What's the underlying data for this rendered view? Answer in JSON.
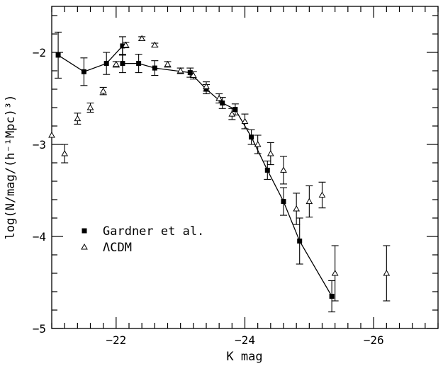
{
  "chart_data": {
    "type": "scatter",
    "title": "",
    "xlabel": "K mag",
    "ylabel": "log(N/mag/(h⁻¹Mpc)³)",
    "xlim": [
      -21,
      -27
    ],
    "ylim": [
      -5,
      -1.5
    ],
    "x_ticks": [
      -22,
      -24,
      -26
    ],
    "x_tick_labels": [
      "−22",
      "−24",
      "−26"
    ],
    "y_ticks": [
      -5,
      -4,
      -3,
      -2
    ],
    "y_tick_labels": [
      "−5",
      "−4",
      "−3",
      "−2"
    ],
    "x_minor_step": 0.2,
    "y_minor_step": 0.2,
    "grid": false,
    "legend_position": "lower-left",
    "series": [
      {
        "name": "Gardner et al.",
        "marker": "filled-square",
        "connected": true,
        "points": [
          {
            "x": -21.1,
            "y": -2.03,
            "err": 0.25
          },
          {
            "x": -21.5,
            "y": -2.21,
            "err": 0.15
          },
          {
            "x": -21.85,
            "y": -2.12,
            "err": 0.12
          },
          {
            "x": -22.1,
            "y": -1.93,
            "err": 0.1
          },
          {
            "x": -22.1,
            "y": -2.12,
            "err": 0.1
          },
          {
            "x": -22.35,
            "y": -2.12,
            "err": 0.1
          },
          {
            "x": -22.6,
            "y": -2.17,
            "err": 0.08
          },
          {
            "x": -23.15,
            "y": -2.22,
            "err": 0.05
          },
          {
            "x": -23.4,
            "y": -2.4,
            "err": 0.05
          },
          {
            "x": -23.65,
            "y": -2.55,
            "err": 0.06
          },
          {
            "x": -23.85,
            "y": -2.62,
            "err": 0.06
          },
          {
            "x": -24.1,
            "y": -2.92,
            "err": 0.08
          },
          {
            "x": -24.35,
            "y": -3.28,
            "err": 0.1
          },
          {
            "x": -24.6,
            "y": -3.62,
            "err": 0.15
          },
          {
            "x": -24.85,
            "y": -4.05,
            "err": 0.25
          },
          {
            "x": -25.35,
            "y": -4.65,
            "err": 0.17
          }
        ]
      },
      {
        "name": "ΛCDM",
        "marker": "open-triangle",
        "connected": false,
        "points": [
          {
            "x": -21.0,
            "y": -2.9,
            "err": 0
          },
          {
            "x": -21.2,
            "y": -3.1,
            "err": 0.1
          },
          {
            "x": -21.4,
            "y": -2.72,
            "err": 0.06
          },
          {
            "x": -21.6,
            "y": -2.6,
            "err": 0.05
          },
          {
            "x": -21.8,
            "y": -2.42,
            "err": 0.04
          },
          {
            "x": -22.0,
            "y": -2.13,
            "err": 0.03
          },
          {
            "x": -22.15,
            "y": -1.92,
            "err": 0.03
          },
          {
            "x": -22.4,
            "y": -1.85,
            "err": 0.02
          },
          {
            "x": -22.6,
            "y": -1.92,
            "err": 0.02
          },
          {
            "x": -22.8,
            "y": -2.13,
            "err": 0.03
          },
          {
            "x": -23.0,
            "y": -2.2,
            "err": 0.03
          },
          {
            "x": -23.2,
            "y": -2.25,
            "err": 0.04
          },
          {
            "x": -23.4,
            "y": -2.37,
            "err": 0.05
          },
          {
            "x": -23.6,
            "y": -2.5,
            "err": 0.05
          },
          {
            "x": -23.8,
            "y": -2.67,
            "err": 0.06
          },
          {
            "x": -24.0,
            "y": -2.75,
            "err": 0.08
          },
          {
            "x": -24.2,
            "y": -3.0,
            "err": 0.1
          },
          {
            "x": -24.4,
            "y": -3.1,
            "err": 0.12
          },
          {
            "x": -24.6,
            "y": -3.28,
            "err": 0.15
          },
          {
            "x": -24.8,
            "y": -3.7,
            "err": 0.17
          },
          {
            "x": -25.0,
            "y": -3.62,
            "err": 0.17
          },
          {
            "x": -25.2,
            "y": -3.55,
            "err": 0.14
          },
          {
            "x": -25.4,
            "y": -4.4,
            "err": 0.3
          },
          {
            "x": -26.2,
            "y": -4.4,
            "err": 0.3
          }
        ]
      }
    ]
  }
}
